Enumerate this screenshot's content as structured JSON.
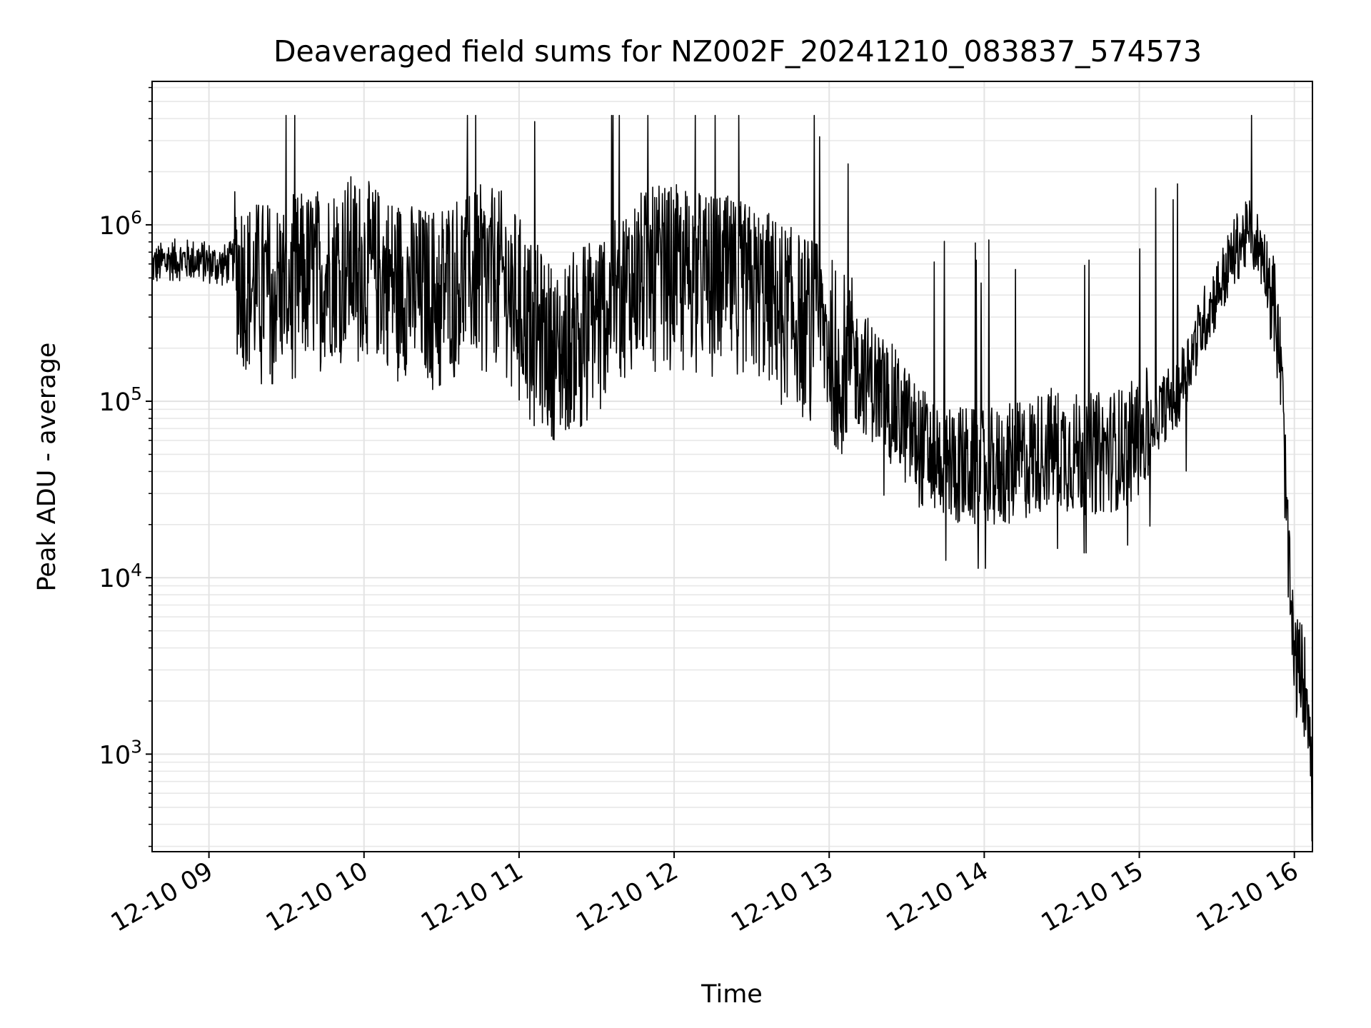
{
  "chart_data": {
    "type": "line",
    "title": "Deaveraged field sums for NZ002F_20241210_083837_574573",
    "xlabel": "Time",
    "ylabel": "Peak ADU - average",
    "yscale": "log",
    "ylim": [
      280,
      6500000
    ],
    "xlim": [
      "2024-12-10 08:38",
      "2024-12-10 16:07"
    ],
    "grid": true,
    "line_color": "#000000",
    "x_tick_labels": [
      "12-10 09",
      "12-10 10",
      "12-10 11",
      "12-10 12",
      "12-10 13",
      "12-10 14",
      "12-10 15",
      "12-10 16"
    ],
    "y_tick_labels": [
      {
        "value": 1000,
        "base": "10",
        "exp": "3"
      },
      {
        "value": 10000,
        "base": "10",
        "exp": "4"
      },
      {
        "value": 100000,
        "base": "10",
        "exp": "5"
      },
      {
        "value": 1000000,
        "base": "10",
        "exp": "6"
      }
    ],
    "series": [
      {
        "x": [
          "2024-12-10 08:38",
          "2024-12-10 08:45",
          "2024-12-10 08:55",
          "2024-12-10 09:05",
          "2024-12-10 09:10",
          "2024-12-10 09:15",
          "2024-12-10 09:20",
          "2024-12-10 09:25",
          "2024-12-10 09:35",
          "2024-12-10 09:45",
          "2024-12-10 09:55",
          "2024-12-10 10:05",
          "2024-12-10 10:15",
          "2024-12-10 10:25",
          "2024-12-10 10:35",
          "2024-12-10 10:45",
          "2024-12-10 10:55",
          "2024-12-10 11:05",
          "2024-12-10 11:15",
          "2024-12-10 11:25",
          "2024-12-10 11:35",
          "2024-12-10 11:45",
          "2024-12-10 11:55",
          "2024-12-10 12:05",
          "2024-12-10 12:15",
          "2024-12-10 12:25",
          "2024-12-10 12:35",
          "2024-12-10 12:45",
          "2024-12-10 12:55",
          "2024-12-10 13:05",
          "2024-12-10 13:15",
          "2024-12-10 13:25",
          "2024-12-10 13:35",
          "2024-12-10 13:45",
          "2024-12-10 13:55",
          "2024-12-10 14:05",
          "2024-12-10 14:15",
          "2024-12-10 14:25",
          "2024-12-10 14:35",
          "2024-12-10 14:45",
          "2024-12-10 14:55",
          "2024-12-10 15:05",
          "2024-12-10 15:15",
          "2024-12-10 15:25",
          "2024-12-10 15:32",
          "2024-12-10 15:38",
          "2024-12-10 15:43",
          "2024-12-10 15:48",
          "2024-12-10 15:52",
          "2024-12-10 15:55",
          "2024-12-10 15:58",
          "2024-12-10 16:00",
          "2024-12-10 16:03",
          "2024-12-10 16:06",
          "2024-12-10 16:07"
        ],
        "y": [
          600000,
          650000,
          650000,
          600000,
          650000,
          500000,
          500000,
          500000,
          550000,
          600000,
          700000,
          600000,
          500000,
          450000,
          550000,
          600000,
          550000,
          300000,
          200000,
          300000,
          400000,
          550000,
          600000,
          600000,
          550000,
          500000,
          450000,
          350000,
          300000,
          200000,
          150000,
          100000,
          60000,
          50000,
          45000,
          45000,
          50000,
          60000,
          55000,
          55000,
          60000,
          80000,
          120000,
          300000,
          500000,
          800000,
          950000,
          700000,
          400000,
          150000,
          10000,
          3500,
          3000,
          2000,
          500
        ]
      }
    ]
  }
}
